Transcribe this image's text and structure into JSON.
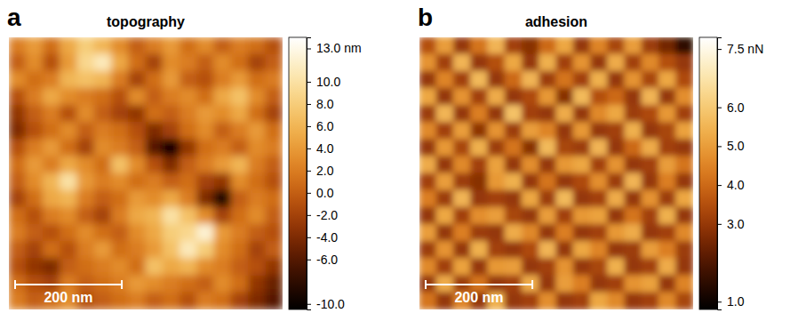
{
  "chart_data": [
    {
      "type": "heatmap",
      "panel_label": "a",
      "title": "topography",
      "tick_labels": false,
      "xlim": [
        0,
        513
      ],
      "scale_bar": {
        "label": "200 nm",
        "value": 200
      },
      "colorbar": {
        "range": [
          -10.5,
          14
        ],
        "ticks": [
          {
            "value": 13,
            "label": "13.0 nm"
          },
          {
            "value": 10,
            "label": "10.0"
          },
          {
            "value": 8,
            "label": "8.0"
          },
          {
            "value": 6,
            "label": "6.0"
          },
          {
            "value": 4,
            "label": "4.0"
          },
          {
            "value": 2,
            "label": "2.0"
          },
          {
            "value": 0,
            "label": "0.0"
          },
          {
            "value": -2,
            "label": "-2.0"
          },
          {
            "value": -4,
            "label": "-4.0"
          },
          {
            "value": -6,
            "label": "-6.0"
          },
          {
            "value": -10,
            "label": "-10.0"
          }
        ]
      },
      "cells": [
        [
          2,
          4,
          1,
          5,
          8,
          6,
          3,
          0,
          2,
          4,
          1,
          3,
          0,
          2,
          1,
          -1
        ],
        [
          0,
          3,
          -1,
          4,
          9,
          11,
          5,
          1,
          -2,
          3,
          2,
          0,
          3,
          1,
          -2,
          0
        ],
        [
          3,
          1,
          2,
          6,
          7,
          6,
          2,
          -2,
          1,
          4,
          0,
          -1,
          2,
          4,
          1,
          2
        ],
        [
          -1,
          2,
          5,
          3,
          2,
          1,
          -1,
          3,
          0,
          2,
          3,
          1,
          5,
          7,
          3,
          0
        ],
        [
          -3,
          0,
          2,
          -1,
          3,
          0,
          -2,
          -3,
          1,
          0,
          2,
          4,
          3,
          5,
          1,
          -2
        ],
        [
          -4,
          -1,
          1,
          3,
          0,
          2,
          1,
          -1,
          -4,
          -2,
          1,
          3,
          0,
          2,
          4,
          1
        ],
        [
          -1,
          2,
          4,
          1,
          -2,
          3,
          2,
          0,
          -6,
          -10,
          -3,
          1,
          2,
          0,
          3,
          2
        ],
        [
          1,
          4,
          2,
          5,
          3,
          1,
          7,
          3,
          -1,
          -4,
          0,
          2,
          4,
          6,
          2,
          0
        ],
        [
          0,
          3,
          6,
          10,
          4,
          2,
          3,
          1,
          2,
          0,
          1,
          -2,
          -3,
          3,
          1,
          -1
        ],
        [
          -2,
          1,
          5,
          6,
          2,
          0,
          1,
          4,
          3,
          5,
          2,
          -4,
          -9,
          0,
          2,
          1
        ],
        [
          1,
          -1,
          2,
          3,
          0,
          -2,
          2,
          5,
          6,
          10,
          7,
          3,
          -2,
          1,
          3,
          0
        ],
        [
          2,
          0,
          -1,
          1,
          3,
          1,
          0,
          3,
          5,
          8,
          9,
          12,
          4,
          2,
          0,
          -1
        ],
        [
          0,
          -2,
          1,
          -1,
          2,
          4,
          1,
          2,
          4,
          7,
          11,
          8,
          3,
          1,
          -2,
          0
        ],
        [
          -1,
          -3,
          -4,
          0,
          1,
          2,
          3,
          1,
          7,
          5,
          6,
          3,
          2,
          0,
          -1,
          -3
        ],
        [
          1,
          -1,
          -2,
          2,
          0,
          1,
          2,
          4,
          3,
          2,
          1,
          0,
          3,
          1,
          -3,
          -5
        ],
        [
          2,
          0,
          1,
          3,
          -1,
          0,
          1,
          2,
          0,
          1,
          -1,
          2,
          1,
          -2,
          -4,
          -6
        ]
      ]
    },
    {
      "type": "heatmap",
      "panel_label": "b",
      "title": "adhesion",
      "tick_labels": false,
      "xlim": [
        0,
        513
      ],
      "scale_bar": {
        "label": "200 nm",
        "value": 200
      },
      "colorbar": {
        "range": [
          0.8,
          7.8
        ],
        "ticks": [
          {
            "value": 7.5,
            "label": "7.5 nN"
          },
          {
            "value": 6,
            "label": "6.0"
          },
          {
            "value": 5,
            "label": "5.0"
          },
          {
            "value": 4,
            "label": "4.0"
          },
          {
            "value": 3,
            "label": "3.0"
          },
          {
            "value": 1,
            "label": "1.0"
          }
        ]
      },
      "cells": [
        [
          3.5,
          5.0,
          3.0,
          4.2,
          5.5,
          3.2,
          2.8,
          4.0,
          5.2,
          3.0,
          4.5,
          3.3,
          5.0,
          3.1,
          2.5,
          1.5
        ],
        [
          4.8,
          3.2,
          5.5,
          3.0,
          3.5,
          5.2,
          3.0,
          5.4,
          3.2,
          4.8,
          3.0,
          5.3,
          3.2,
          4.6,
          3.5,
          3.0
        ],
        [
          3.0,
          4.5,
          3.2,
          5.6,
          3.0,
          4.0,
          5.5,
          3.1,
          4.2,
          3.2,
          5.4,
          3.0,
          4.8,
          3.3,
          5.2,
          3.4
        ],
        [
          5.2,
          3.0,
          4.8,
          3.2,
          5.3,
          3.0,
          3.4,
          4.9,
          2.8,
          5.6,
          3.5,
          4.0,
          3.0,
          5.5,
          3.0,
          4.7
        ],
        [
          3.1,
          5.5,
          3.0,
          4.4,
          3.0,
          5.8,
          3.2,
          3.0,
          5.3,
          3.0,
          4.6,
          5.2,
          3.1,
          3.4,
          4.9,
          3.2
        ],
        [
          4.6,
          3.2,
          5.0,
          2.9,
          4.8,
          3.1,
          5.0,
          4.5,
          3.0,
          4.9,
          3.0,
          3.2,
          5.4,
          3.0,
          3.3,
          5.1
        ],
        [
          3.0,
          4.9,
          3.3,
          5.4,
          3.1,
          4.2,
          2.8,
          5.6,
          3.3,
          3.1,
          5.5,
          3.0,
          4.0,
          5.3,
          3.2,
          3.0
        ],
        [
          5.3,
          3.0,
          4.6,
          3.2,
          5.1,
          3.0,
          4.7,
          3.0,
          4.9,
          5.2,
          3.2,
          4.8,
          3.0,
          3.2,
          5.0,
          4.2
        ],
        [
          3.2,
          5.0,
          3.1,
          2.8,
          4.9,
          5.4,
          3.0,
          4.2,
          3.0,
          3.4,
          4.7,
          3.1,
          5.5,
          3.0,
          4.4,
          3.0
        ],
        [
          4.4,
          3.1,
          5.5,
          3.0,
          3.2,
          3.0,
          5.2,
          3.1,
          5.6,
          3.0,
          3.2,
          5.3,
          3.0,
          4.8,
          3.1,
          5.2
        ],
        [
          3.0,
          5.2,
          3.2,
          4.7,
          5.0,
          3.3,
          3.0,
          5.0,
          3.2,
          4.9,
          5.1,
          3.0,
          4.2,
          3.2,
          5.4,
          3.0
        ],
        [
          5.0,
          3.0,
          4.4,
          3.1,
          3.0,
          5.3,
          4.6,
          3.0,
          4.4,
          3.0,
          3.2,
          4.9,
          5.3,
          3.0,
          3.2,
          4.6
        ],
        [
          3.1,
          4.8,
          3.0,
          5.4,
          3.2,
          3.0,
          3.4,
          5.5,
          3.0,
          5.2,
          4.5,
          3.0,
          3.1,
          5.0,
          4.4,
          3.1
        ],
        [
          4.6,
          3.2,
          5.1,
          3.0,
          4.9,
          5.0,
          3.0,
          3.2,
          4.8,
          3.0,
          3.3,
          5.4,
          3.0,
          3.2,
          5.3,
          3.0
        ],
        [
          3.0,
          5.3,
          3.1,
          4.2,
          3.0,
          3.2,
          5.3,
          3.0,
          5.0,
          4.4,
          3.0,
          3.2,
          4.8,
          5.1,
          3.0,
          4.5
        ],
        [
          4.2,
          3.0,
          4.5,
          3.0,
          5.4,
          3.0,
          3.2,
          4.7,
          3.0,
          3.2,
          5.2,
          4.6,
          3.0,
          3.2,
          4.6,
          3.3
        ]
      ]
    }
  ]
}
